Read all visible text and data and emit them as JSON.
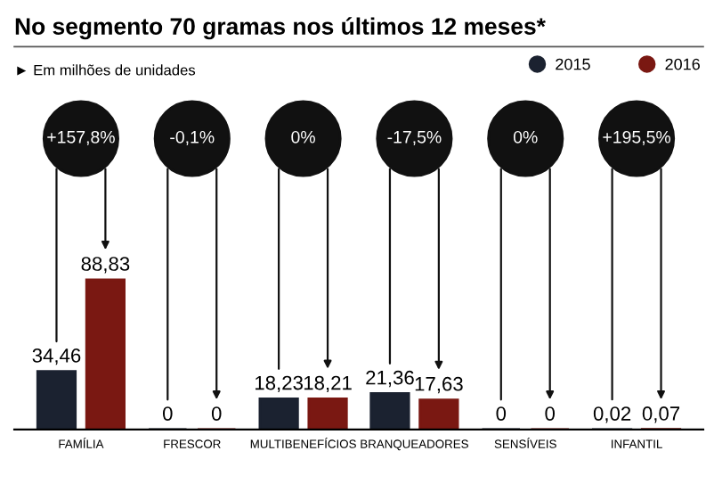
{
  "chart_data": {
    "type": "bar",
    "title": "No segmento 70 gramas nos últimos 12 meses*",
    "subtitle": "► Em milhões de unidades",
    "categories": [
      "FAMÍLIA",
      "FRESCOR",
      "MULTIBENEFÍCIOS",
      "BRANQUEADORES",
      "SENSÍVEIS",
      "INFANTIL"
    ],
    "series": [
      {
        "name": "2015",
        "color": "#1b2230",
        "values": [
          34.46,
          0,
          18.23,
          21.36,
          0,
          0.02
        ],
        "value_labels": [
          "34,46",
          "0",
          "18,23",
          "21,36",
          "0",
          "0,02"
        ]
      },
      {
        "name": "2016",
        "color": "#7a1812",
        "values": [
          88.83,
          0,
          18.21,
          17.63,
          0,
          0.07
        ],
        "value_labels": [
          "88,83",
          "0",
          "18,21",
          "17,63",
          "0",
          "0,07"
        ]
      }
    ],
    "annotations": [
      "+157,8%",
      "-0,1%",
      "0%",
      "-17,5%",
      "0%",
      "+195,5%"
    ],
    "legend": "top right",
    "grid": false,
    "tick_labels": "x"
  }
}
